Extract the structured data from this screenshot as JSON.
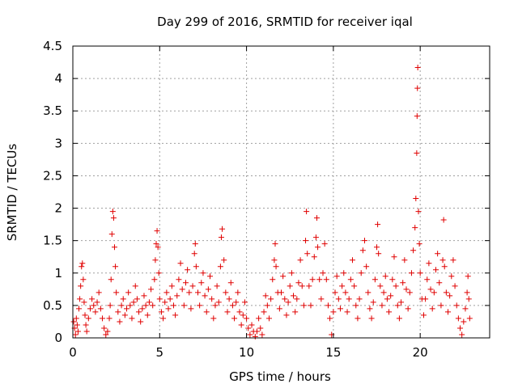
{
  "chart_data": {
    "type": "scatter",
    "title": "Day 299 of 2016, SRMTID for receiver iqal",
    "xlabel": "GPS time / hours",
    "ylabel": "SRMTID / TECUs",
    "xlim": [
      0,
      24
    ],
    "ylim": [
      0,
      4.5
    ],
    "x_ticks": [
      "0",
      "5",
      "10",
      "15",
      "20"
    ],
    "x_tick_values": [
      0,
      5,
      10,
      15,
      20
    ],
    "y_ticks": [
      "0",
      "0.5",
      "1",
      "1.5",
      "2",
      "2.5",
      "3",
      "3.5",
      "4",
      "4.5"
    ],
    "y_tick_values": [
      0,
      0.5,
      1,
      1.5,
      2,
      2.5,
      3,
      3.5,
      4,
      4.5
    ],
    "grid": true,
    "marker": "plus",
    "marker_color": "#e00000",
    "series": [
      {
        "name": "SRMTID",
        "points": [
          [
            0.05,
            0.25
          ],
          [
            0.1,
            0.15
          ],
          [
            0.15,
            0.05
          ],
          [
            0.2,
            0.3
          ],
          [
            0.25,
            0.2
          ],
          [
            0.3,
            0.1
          ],
          [
            0.35,
            0.45
          ],
          [
            0.4,
            0.6
          ],
          [
            0.45,
            0.8
          ],
          [
            0.5,
            1.1
          ],
          [
            0.55,
            1.15
          ],
          [
            0.6,
            0.9
          ],
          [
            0.65,
            0.55
          ],
          [
            0.7,
            0.35
          ],
          [
            0.75,
            0.2
          ],
          [
            0.8,
            0.1
          ],
          [
            0.9,
            0.3
          ],
          [
            1.0,
            0.45
          ],
          [
            1.1,
            0.6
          ],
          [
            1.2,
            0.5
          ],
          [
            1.3,
            0.4
          ],
          [
            1.4,
            0.55
          ],
          [
            1.5,
            0.7
          ],
          [
            1.6,
            0.45
          ],
          [
            1.7,
            0.3
          ],
          [
            1.8,
            0.15
          ],
          [
            1.9,
            0.05
          ],
          [
            2.0,
            0.1
          ],
          [
            2.1,
            0.3
          ],
          [
            2.15,
            0.5
          ],
          [
            2.2,
            0.9
          ],
          [
            2.25,
            1.6
          ],
          [
            2.3,
            1.95
          ],
          [
            2.35,
            1.85
          ],
          [
            2.4,
            1.4
          ],
          [
            2.45,
            1.1
          ],
          [
            2.5,
            0.7
          ],
          [
            2.6,
            0.4
          ],
          [
            2.7,
            0.25
          ],
          [
            2.8,
            0.5
          ],
          [
            2.9,
            0.6
          ],
          [
            3.0,
            0.35
          ],
          [
            3.1,
            0.45
          ],
          [
            3.2,
            0.7
          ],
          [
            3.3,
            0.5
          ],
          [
            3.4,
            0.3
          ],
          [
            3.5,
            0.55
          ],
          [
            3.6,
            0.8
          ],
          [
            3.7,
            0.6
          ],
          [
            3.8,
            0.4
          ],
          [
            3.9,
            0.25
          ],
          [
            4.0,
            0.45
          ],
          [
            4.1,
            0.65
          ],
          [
            4.2,
            0.5
          ],
          [
            4.3,
            0.35
          ],
          [
            4.4,
            0.55
          ],
          [
            4.5,
            0.75
          ],
          [
            4.6,
            0.5
          ],
          [
            4.7,
            0.9
          ],
          [
            4.75,
            1.2
          ],
          [
            4.8,
            1.45
          ],
          [
            4.85,
            1.65
          ],
          [
            4.9,
            1.4
          ],
          [
            4.95,
            1.0
          ],
          [
            5.0,
            0.6
          ],
          [
            5.1,
            0.4
          ],
          [
            5.2,
            0.3
          ],
          [
            5.3,
            0.55
          ],
          [
            5.4,
            0.7
          ],
          [
            5.5,
            0.45
          ],
          [
            5.6,
            0.6
          ],
          [
            5.7,
            0.8
          ],
          [
            5.8,
            0.5
          ],
          [
            5.9,
            0.35
          ],
          [
            6.0,
            0.65
          ],
          [
            6.1,
            0.9
          ],
          [
            6.2,
            1.15
          ],
          [
            6.3,
            0.75
          ],
          [
            6.4,
            0.5
          ],
          [
            6.5,
            0.85
          ],
          [
            6.6,
            1.05
          ],
          [
            6.7,
            0.7
          ],
          [
            6.8,
            0.45
          ],
          [
            6.9,
            0.8
          ],
          [
            7.0,
            1.3
          ],
          [
            7.05,
            1.45
          ],
          [
            7.1,
            1.1
          ],
          [
            7.2,
            0.7
          ],
          [
            7.3,
            0.5
          ],
          [
            7.4,
            0.85
          ],
          [
            7.5,
            1.0
          ],
          [
            7.6,
            0.65
          ],
          [
            7.7,
            0.4
          ],
          [
            7.8,
            0.75
          ],
          [
            7.9,
            0.95
          ],
          [
            8.0,
            0.6
          ],
          [
            8.1,
            0.3
          ],
          [
            8.2,
            0.5
          ],
          [
            8.3,
            0.8
          ],
          [
            8.4,
            0.55
          ],
          [
            8.5,
            1.1
          ],
          [
            8.55,
            1.55
          ],
          [
            8.6,
            1.68
          ],
          [
            8.7,
            1.2
          ],
          [
            8.8,
            0.7
          ],
          [
            8.9,
            0.4
          ],
          [
            9.0,
            0.6
          ],
          [
            9.1,
            0.85
          ],
          [
            9.2,
            0.5
          ],
          [
            9.3,
            0.3
          ],
          [
            9.4,
            0.55
          ],
          [
            9.5,
            0.7
          ],
          [
            9.6,
            0.4
          ],
          [
            9.7,
            0.2
          ],
          [
            9.8,
            0.35
          ],
          [
            9.9,
            0.55
          ],
          [
            10.0,
            0.3
          ],
          [
            10.1,
            0.15
          ],
          [
            10.2,
            0.05
          ],
          [
            10.3,
            0.2
          ],
          [
            10.4,
            0.1
          ],
          [
            10.5,
            0.02
          ],
          [
            10.6,
            0.1
          ],
          [
            10.7,
            0.3
          ],
          [
            10.8,
            0.15
          ],
          [
            10.9,
            0.05
          ],
          [
            11.0,
            0.4
          ],
          [
            11.1,
            0.65
          ],
          [
            11.2,
            0.5
          ],
          [
            11.3,
            0.3
          ],
          [
            11.4,
            0.6
          ],
          [
            11.5,
            0.9
          ],
          [
            11.6,
            1.2
          ],
          [
            11.65,
            1.45
          ],
          [
            11.7,
            1.1
          ],
          [
            11.8,
            0.7
          ],
          [
            11.9,
            0.45
          ],
          [
            12.0,
            0.7
          ],
          [
            12.1,
            0.95
          ],
          [
            12.2,
            0.6
          ],
          [
            12.3,
            0.35
          ],
          [
            12.4,
            0.55
          ],
          [
            12.5,
            0.8
          ],
          [
            12.6,
            1.0
          ],
          [
            12.7,
            0.65
          ],
          [
            12.8,
            0.4
          ],
          [
            12.9,
            0.6
          ],
          [
            13.0,
            0.85
          ],
          [
            13.1,
            1.2
          ],
          [
            13.2,
            0.8
          ],
          [
            13.3,
            0.5
          ],
          [
            13.4,
            1.5
          ],
          [
            13.45,
            1.95
          ],
          [
            13.5,
            1.3
          ],
          [
            13.6,
            0.8
          ],
          [
            13.7,
            0.5
          ],
          [
            13.8,
            0.9
          ],
          [
            13.9,
            1.25
          ],
          [
            14.0,
            1.55
          ],
          [
            14.05,
            1.85
          ],
          [
            14.1,
            1.4
          ],
          [
            14.2,
            0.9
          ],
          [
            14.3,
            0.6
          ],
          [
            14.4,
            1.0
          ],
          [
            14.5,
            1.45
          ],
          [
            14.6,
            0.9
          ],
          [
            14.7,
            0.5
          ],
          [
            14.8,
            0.3
          ],
          [
            14.9,
            0.05
          ],
          [
            15.0,
            0.4
          ],
          [
            15.1,
            0.7
          ],
          [
            15.2,
            0.95
          ],
          [
            15.3,
            0.6
          ],
          [
            15.4,
            0.45
          ],
          [
            15.5,
            0.8
          ],
          [
            15.6,
            1.0
          ],
          [
            15.7,
            0.7
          ],
          [
            15.8,
            0.4
          ],
          [
            15.9,
            0.6
          ],
          [
            16.0,
            0.9
          ],
          [
            16.1,
            1.2
          ],
          [
            16.2,
            0.8
          ],
          [
            16.3,
            0.5
          ],
          [
            16.4,
            0.3
          ],
          [
            16.5,
            0.6
          ],
          [
            16.6,
            1.0
          ],
          [
            16.7,
            1.35
          ],
          [
            16.8,
            1.5
          ],
          [
            16.9,
            1.1
          ],
          [
            17.0,
            0.7
          ],
          [
            17.1,
            0.45
          ],
          [
            17.2,
            0.3
          ],
          [
            17.3,
            0.55
          ],
          [
            17.4,
            0.9
          ],
          [
            17.5,
            1.4
          ],
          [
            17.55,
            1.75
          ],
          [
            17.6,
            1.3
          ],
          [
            17.7,
            0.8
          ],
          [
            17.8,
            0.5
          ],
          [
            17.9,
            0.7
          ],
          [
            18.0,
            0.95
          ],
          [
            18.1,
            0.6
          ],
          [
            18.2,
            0.4
          ],
          [
            18.3,
            0.65
          ],
          [
            18.4,
            0.9
          ],
          [
            18.5,
            1.25
          ],
          [
            18.6,
            0.8
          ],
          [
            18.7,
            0.5
          ],
          [
            18.8,
            0.3
          ],
          [
            18.9,
            0.55
          ],
          [
            19.0,
            0.85
          ],
          [
            19.1,
            1.2
          ],
          [
            19.2,
            0.75
          ],
          [
            19.3,
            0.45
          ],
          [
            19.4,
            0.7
          ],
          [
            19.5,
            1.0
          ],
          [
            19.6,
            1.35
          ],
          [
            19.7,
            1.7
          ],
          [
            19.75,
            2.15
          ],
          [
            19.8,
            2.85
          ],
          [
            19.82,
            3.42
          ],
          [
            19.84,
            3.85
          ],
          [
            19.86,
            4.17
          ],
          [
            19.9,
            1.95
          ],
          [
            19.95,
            1.45
          ],
          [
            20.0,
            1.0
          ],
          [
            20.1,
            0.6
          ],
          [
            20.2,
            0.35
          ],
          [
            20.3,
            0.6
          ],
          [
            20.4,
            0.9
          ],
          [
            20.5,
            1.15
          ],
          [
            20.6,
            0.75
          ],
          [
            20.7,
            0.45
          ],
          [
            20.8,
            0.7
          ],
          [
            20.9,
            1.05
          ],
          [
            21.0,
            1.3
          ],
          [
            21.1,
            0.85
          ],
          [
            21.2,
            0.5
          ],
          [
            21.3,
            1.2
          ],
          [
            21.35,
            1.82
          ],
          [
            21.4,
            1.1
          ],
          [
            21.5,
            0.7
          ],
          [
            21.6,
            0.4
          ],
          [
            21.7,
            0.65
          ],
          [
            21.8,
            0.95
          ],
          [
            21.9,
            1.2
          ],
          [
            22.0,
            0.8
          ],
          [
            22.1,
            0.5
          ],
          [
            22.2,
            0.3
          ],
          [
            22.3,
            0.15
          ],
          [
            22.4,
            0.05
          ],
          [
            22.5,
            0.25
          ],
          [
            22.6,
            0.45
          ],
          [
            22.7,
            0.7
          ],
          [
            22.75,
            0.95
          ],
          [
            22.8,
            0.6
          ],
          [
            22.85,
            0.3
          ]
        ]
      }
    ]
  }
}
